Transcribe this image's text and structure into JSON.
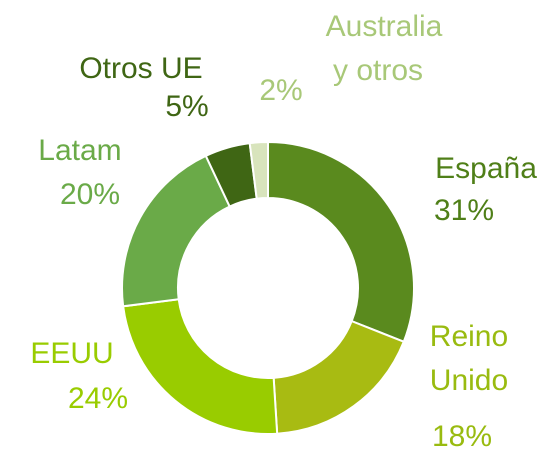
{
  "chart_data": {
    "type": "donut",
    "categories": [
      [
        "España"
      ],
      [
        "Reino",
        "Unido"
      ],
      [
        "EEUU"
      ],
      [
        "Latam"
      ],
      [
        "Otros UE"
      ],
      [
        "Australia",
        "y otros"
      ]
    ],
    "values": [
      31,
      18,
      24,
      20,
      5,
      2
    ],
    "value_labels": [
      "31%",
      "18%",
      "24%",
      "20%",
      "5%",
      "2%"
    ],
    "colors": [
      "#5a8a1e",
      "#a8bb12",
      "#99cc00",
      "#6aaa48",
      "#3f6614",
      "#d8e4bc"
    ],
    "label_colors": [
      "#4f7f18",
      "#99bb10",
      "#99cc00",
      "#6aaa48",
      "#3f6614",
      "#a8c878"
    ]
  }
}
